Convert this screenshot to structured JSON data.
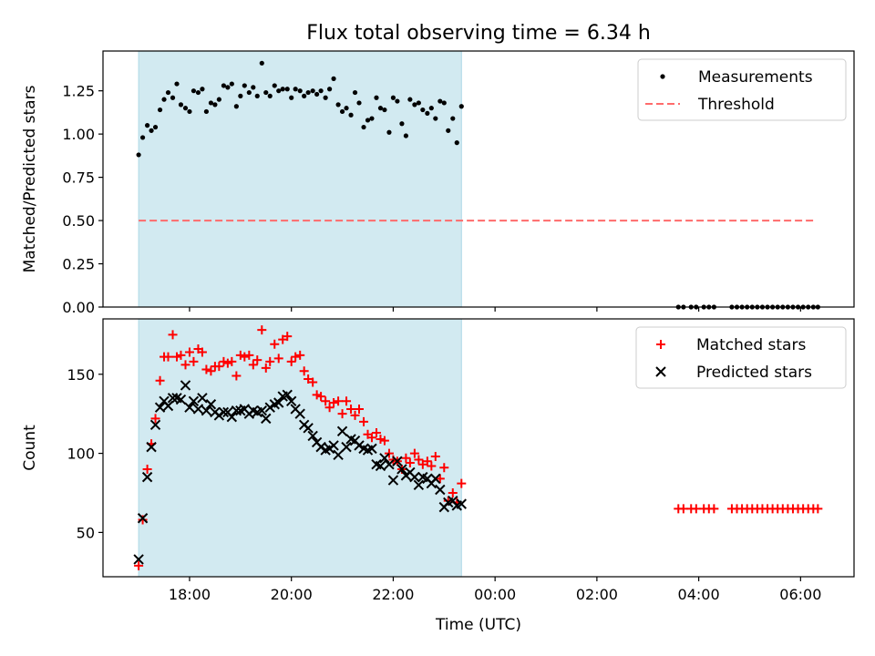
{
  "figure_title": "Flux total observing time = 6.34 h",
  "xlabel": "Time (UTC)",
  "x_ticks": [
    "18:00",
    "20:00",
    "22:00",
    "00:00",
    "02:00",
    "04:00",
    "06:00"
  ],
  "colors": {
    "highlight": "#add8e6",
    "measurement": "#000000",
    "threshold": "#ff6b6b",
    "matched": "#ff0000",
    "predicted": "#000000"
  },
  "chart_data": [
    {
      "type": "scatter",
      "x_unit": "hours since 00:00 UTC of first day",
      "x_ticks_hours": [
        18,
        20,
        22,
        24,
        26,
        28,
        30
      ],
      "xlim": [
        16.3,
        31.05
      ],
      "ylabel": "Matched/Predicted stars",
      "ylim": [
        0,
        1.48
      ],
      "y_ticks": [
        "0.00",
        "0.25",
        "0.50",
        "0.75",
        "1.00",
        "1.25"
      ],
      "highlight_span": [
        17.0,
        23.34
      ],
      "threshold": 0.5,
      "threshold_x": [
        17.0,
        30.3
      ],
      "legend": [
        "Measurements",
        "Threshold"
      ],
      "legend_position": "top-right",
      "series": [
        {
          "name": "Measurements",
          "x": [
            17.0,
            17.08,
            17.17,
            17.25,
            17.33,
            17.42,
            17.5,
            17.58,
            17.67,
            17.75,
            17.83,
            17.92,
            18.0,
            18.08,
            18.17,
            18.25,
            18.33,
            18.42,
            18.5,
            18.58,
            18.67,
            18.75,
            18.83,
            18.92,
            19.0,
            19.08,
            19.17,
            19.25,
            19.33,
            19.42,
            19.5,
            19.58,
            19.67,
            19.75,
            19.83,
            19.92,
            20.0,
            20.08,
            20.17,
            20.25,
            20.33,
            20.42,
            20.5,
            20.58,
            20.67,
            20.75,
            20.83,
            20.92,
            21.0,
            21.08,
            21.17,
            21.25,
            21.33,
            21.42,
            21.5,
            21.58,
            21.67,
            21.75,
            21.83,
            21.92,
            22.0,
            22.08,
            22.17,
            22.25,
            22.33,
            22.42,
            22.5,
            22.58,
            22.67,
            22.75,
            22.83,
            22.92,
            23.0,
            23.08,
            23.17,
            23.25,
            23.34,
            27.6,
            27.7,
            27.85,
            27.95,
            28.1,
            28.2,
            28.3,
            28.65,
            28.75,
            28.85,
            28.95,
            29.05,
            29.15,
            29.25,
            29.35,
            29.45,
            29.55,
            29.65,
            29.75,
            29.85,
            29.95,
            30.05,
            30.15,
            30.25,
            30.34
          ],
          "y": [
            0.88,
            0.98,
            1.05,
            1.02,
            1.04,
            1.14,
            1.2,
            1.24,
            1.21,
            1.29,
            1.17,
            1.15,
            1.13,
            1.25,
            1.24,
            1.26,
            1.13,
            1.18,
            1.17,
            1.2,
            1.28,
            1.27,
            1.29,
            1.16,
            1.22,
            1.28,
            1.24,
            1.27,
            1.22,
            1.41,
            1.24,
            1.22,
            1.28,
            1.25,
            1.26,
            1.26,
            1.21,
            1.26,
            1.25,
            1.22,
            1.24,
            1.25,
            1.23,
            1.25,
            1.21,
            1.26,
            1.32,
            1.17,
            1.13,
            1.15,
            1.11,
            1.24,
            1.18,
            1.04,
            1.08,
            1.09,
            1.21,
            1.15,
            1.14,
            1.01,
            1.21,
            1.19,
            1.06,
            0.99,
            1.2,
            1.17,
            1.18,
            1.14,
            1.12,
            1.15,
            1.09,
            1.19,
            1.18,
            1.02,
            1.09,
            0.95,
            1.16,
            0.0,
            0.0,
            0.0,
            0.0,
            0.0,
            0.0,
            0.0,
            0.0,
            0.0,
            0.0,
            0.0,
            0.0,
            0.0,
            0.0,
            0.0,
            0.0,
            0.0,
            0.0,
            0.0,
            0.0,
            0.0,
            0.0,
            0.0,
            0.0,
            0.0
          ]
        }
      ]
    },
    {
      "type": "scatter",
      "x_unit": "hours since 00:00 UTC of first day",
      "x_ticks_hours": [
        18,
        20,
        22,
        24,
        26,
        28,
        30
      ],
      "xlim": [
        16.3,
        31.05
      ],
      "ylabel": "Count",
      "ylim": [
        22,
        185
      ],
      "y_ticks": [
        "50",
        "100",
        "150"
      ],
      "highlight_span": [
        17.0,
        23.34
      ],
      "legend": [
        "Matched stars",
        "Predicted stars"
      ],
      "legend_position": "top-right",
      "series": [
        {
          "name": "Matched stars",
          "x": [
            17.0,
            17.08,
            17.17,
            17.25,
            17.33,
            17.42,
            17.5,
            17.58,
            17.67,
            17.75,
            17.83,
            17.92,
            18.0,
            18.08,
            18.17,
            18.25,
            18.33,
            18.42,
            18.5,
            18.58,
            18.67,
            18.75,
            18.83,
            18.92,
            19.0,
            19.08,
            19.17,
            19.25,
            19.33,
            19.42,
            19.5,
            19.58,
            19.67,
            19.75,
            19.83,
            19.92,
            20.0,
            20.08,
            20.17,
            20.25,
            20.33,
            20.42,
            20.5,
            20.58,
            20.67,
            20.75,
            20.83,
            20.92,
            21.0,
            21.08,
            21.17,
            21.25,
            21.33,
            21.42,
            21.5,
            21.58,
            21.67,
            21.75,
            21.83,
            21.92,
            22.0,
            22.08,
            22.17,
            22.25,
            22.33,
            22.42,
            22.5,
            22.58,
            22.67,
            22.75,
            22.83,
            22.92,
            23.0,
            23.08,
            23.17,
            23.25,
            23.34,
            27.6,
            27.7,
            27.85,
            27.95,
            28.1,
            28.2,
            28.3,
            28.65,
            28.75,
            28.85,
            28.95,
            29.05,
            29.15,
            29.25,
            29.35,
            29.45,
            29.55,
            29.65,
            29.75,
            29.85,
            29.95,
            30.05,
            30.15,
            30.25,
            30.34
          ],
          "y": [
            29,
            58,
            90,
            106,
            122,
            146,
            161,
            161,
            175,
            161,
            162,
            156,
            164,
            158,
            166,
            164,
            153,
            152,
            155,
            155,
            158,
            157,
            158,
            149,
            162,
            161,
            162,
            156,
            159,
            178,
            154,
            158,
            169,
            160,
            172,
            174,
            158,
            161,
            162,
            152,
            147,
            145,
            137,
            136,
            133,
            129,
            132,
            133,
            125,
            133,
            128,
            124,
            128,
            120,
            112,
            110,
            113,
            109,
            108,
            100,
            96,
            95,
            90,
            97,
            94,
            100,
            96,
            93,
            95,
            92,
            98,
            84,
            91,
            70,
            75,
            69,
            81,
            65,
            65,
            65,
            65,
            65,
            65,
            65,
            65,
            65,
            65,
            65,
            65,
            65,
            65,
            65,
            65,
            65,
            65,
            65,
            65,
            65,
            65,
            65,
            65,
            65
          ]
        },
        {
          "name": "Predicted stars",
          "x": [
            17.0,
            17.08,
            17.17,
            17.25,
            17.33,
            17.42,
            17.5,
            17.58,
            17.67,
            17.75,
            17.83,
            17.92,
            18.0,
            18.08,
            18.17,
            18.25,
            18.33,
            18.42,
            18.5,
            18.58,
            18.67,
            18.75,
            18.83,
            18.92,
            19.0,
            19.08,
            19.17,
            19.25,
            19.33,
            19.42,
            19.5,
            19.58,
            19.67,
            19.75,
            19.83,
            19.92,
            20.0,
            20.08,
            20.17,
            20.25,
            20.33,
            20.42,
            20.5,
            20.58,
            20.67,
            20.75,
            20.83,
            20.92,
            21.0,
            21.08,
            21.17,
            21.25,
            21.33,
            21.42,
            21.5,
            21.58,
            21.67,
            21.75,
            21.83,
            21.92,
            22.0,
            22.08,
            22.17,
            22.25,
            22.33,
            22.42,
            22.5,
            22.58,
            22.67,
            22.75,
            22.83,
            22.92,
            23.0,
            23.08,
            23.17,
            23.25,
            23.34
          ],
          "y": [
            33,
            59,
            85,
            104,
            118,
            129,
            133,
            130,
            135,
            135,
            134,
            143,
            129,
            133,
            128,
            135,
            127,
            131,
            126,
            124,
            126,
            126,
            123,
            127,
            127,
            128,
            125,
            127,
            126,
            127,
            122,
            129,
            131,
            132,
            136,
            137,
            133,
            128,
            125,
            118,
            116,
            111,
            107,
            104,
            102,
            103,
            105,
            99,
            114,
            104,
            109,
            108,
            105,
            103,
            102,
            103,
            93,
            92,
            97,
            93,
            83,
            95,
            90,
            86,
            88,
            85,
            80,
            85,
            84,
            81,
            84,
            77,
            66,
            69,
            70,
            67,
            68
          ]
        }
      ]
    }
  ]
}
